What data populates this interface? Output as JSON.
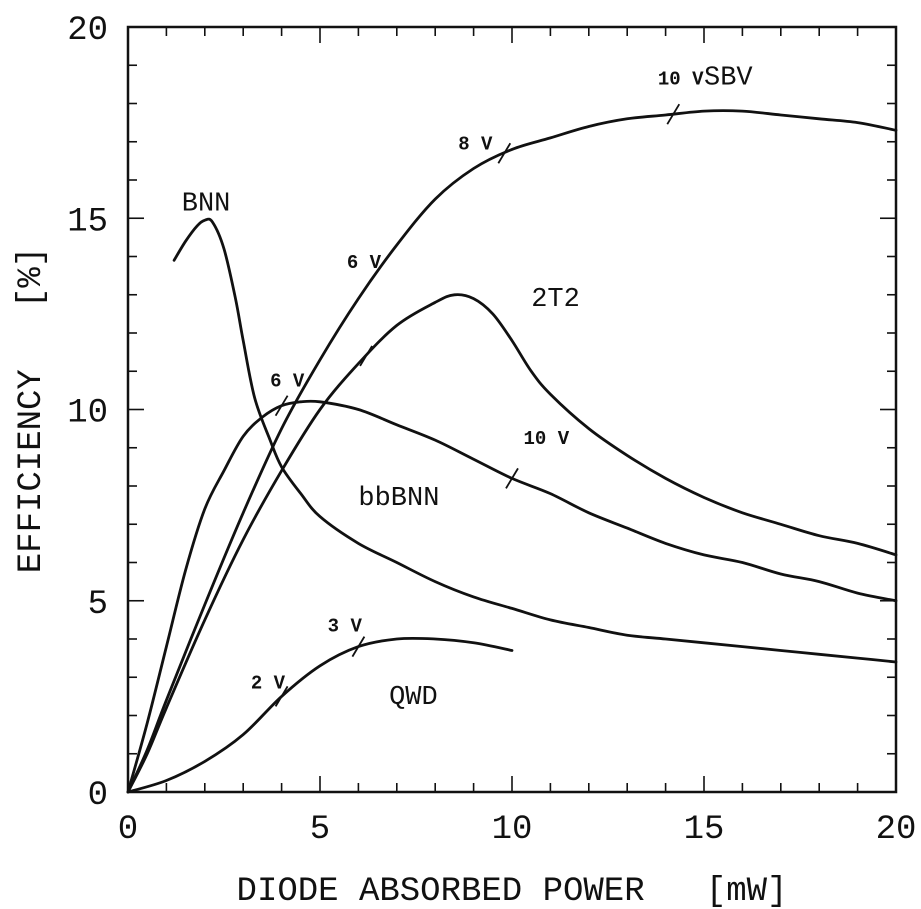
{
  "chart_data": {
    "type": "line",
    "title": "",
    "xlabel": "DIODE ABSORBED POWER   [mW]",
    "ylabel": "EFFICIENCY   [%]",
    "xlim": [
      0,
      20
    ],
    "ylim": [
      0,
      20
    ],
    "x_ticks": [
      0,
      5,
      10,
      15,
      20
    ],
    "y_ticks": [
      0,
      5,
      10,
      15,
      20
    ],
    "x_tick_labels": [
      "0",
      "5",
      "10",
      "15",
      "20"
    ],
    "y_tick_labels": [
      "0",
      "5",
      "10",
      "15",
      "20"
    ],
    "grid": false,
    "legend": "none",
    "series": [
      {
        "name": "SBV",
        "label_at": [
          15.0,
          18.5
        ],
        "points": [
          [
            0,
            0
          ],
          [
            0.5,
            1.1
          ],
          [
            1,
            2.4
          ],
          [
            2,
            4.9
          ],
          [
            3,
            7.3
          ],
          [
            4,
            9.5
          ],
          [
            5,
            11.3
          ],
          [
            6,
            12.9
          ],
          [
            7,
            14.3
          ],
          [
            8,
            15.5
          ],
          [
            9,
            16.3
          ],
          [
            10,
            16.8
          ],
          [
            11,
            17.1
          ],
          [
            12,
            17.4
          ],
          [
            13,
            17.6
          ],
          [
            14,
            17.7
          ],
          [
            15,
            17.8
          ],
          [
            16,
            17.8
          ],
          [
            17,
            17.7
          ],
          [
            18,
            17.6
          ],
          [
            19,
            17.5
          ],
          [
            20,
            17.3
          ]
        ],
        "voltage_marks": [
          {
            "label": "8 V",
            "x": 9.8,
            "label_at": [
              8.6,
              16.8
            ]
          },
          {
            "label": "10 V",
            "x": 14.2,
            "label_at": [
              13.8,
              18.5
            ]
          }
        ]
      },
      {
        "name": "2T2",
        "label_at": [
          10.5,
          12.7
        ],
        "points": [
          [
            0,
            0
          ],
          [
            0.5,
            1.0
          ],
          [
            1,
            2.2
          ],
          [
            2,
            4.5
          ],
          [
            3,
            6.6
          ],
          [
            4,
            8.4
          ],
          [
            5,
            10.0
          ],
          [
            6,
            11.2
          ],
          [
            7,
            12.2
          ],
          [
            8,
            12.8
          ],
          [
            8.5,
            13.0
          ],
          [
            9,
            12.9
          ],
          [
            9.5,
            12.5
          ],
          [
            10,
            11.8
          ],
          [
            10.5,
            11.0
          ],
          [
            11,
            10.4
          ],
          [
            12,
            9.5
          ],
          [
            13,
            8.8
          ],
          [
            14,
            8.2
          ],
          [
            15,
            7.7
          ],
          [
            16,
            7.3
          ],
          [
            17,
            7.0
          ],
          [
            18,
            6.7
          ],
          [
            19,
            6.5
          ],
          [
            20,
            6.2
          ]
        ],
        "voltage_marks": [
          {
            "label": "6 V",
            "x": 6.2,
            "label_at": [
              5.7,
              13.7
            ]
          }
        ]
      },
      {
        "name": "bbBNN",
        "label_at": [
          6.0,
          7.5
        ],
        "points": [
          [
            0,
            0
          ],
          [
            0.5,
            1.8
          ],
          [
            1,
            3.8
          ],
          [
            1.5,
            5.8
          ],
          [
            2,
            7.4
          ],
          [
            2.5,
            8.4
          ],
          [
            3,
            9.3
          ],
          [
            3.5,
            9.8
          ],
          [
            4,
            10.1
          ],
          [
            4.5,
            10.2
          ],
          [
            5,
            10.2
          ],
          [
            6,
            10.0
          ],
          [
            7,
            9.6
          ],
          [
            8,
            9.2
          ],
          [
            9,
            8.7
          ],
          [
            10,
            8.2
          ],
          [
            11,
            7.8
          ],
          [
            12,
            7.3
          ],
          [
            13,
            6.9
          ],
          [
            14,
            6.5
          ],
          [
            15,
            6.2
          ],
          [
            16,
            6.0
          ],
          [
            17,
            5.7
          ],
          [
            18,
            5.5
          ],
          [
            19,
            5.2
          ],
          [
            20,
            5.0
          ]
        ],
        "voltage_marks": [
          {
            "label": "6 V",
            "x": 4.0,
            "label_at": [
              3.7,
              10.6
            ]
          },
          {
            "label": "10 V",
            "x": 10.0,
            "label_at": [
              10.3,
              9.1
            ]
          }
        ]
      },
      {
        "name": "BNN",
        "label_at": [
          1.4,
          15.2
        ],
        "points": [
          [
            1.2,
            13.9
          ],
          [
            1.5,
            14.4
          ],
          [
            1.8,
            14.8
          ],
          [
            2.0,
            14.95
          ],
          [
            2.2,
            14.9
          ],
          [
            2.5,
            14.2
          ],
          [
            2.8,
            12.9
          ],
          [
            3.0,
            11.8
          ],
          [
            3.3,
            10.3
          ],
          [
            3.7,
            9.2
          ],
          [
            4.0,
            8.5
          ],
          [
            4.5,
            7.8
          ],
          [
            5.0,
            7.2
          ],
          [
            6.0,
            6.5
          ],
          [
            7.0,
            6.0
          ],
          [
            8.0,
            5.5
          ],
          [
            9.0,
            5.1
          ],
          [
            10.0,
            4.8
          ],
          [
            11.0,
            4.5
          ],
          [
            12.0,
            4.3
          ],
          [
            13.0,
            4.1
          ],
          [
            14.0,
            4.0
          ],
          [
            15.0,
            3.9
          ],
          [
            16.0,
            3.8
          ],
          [
            17.0,
            3.7
          ],
          [
            18.0,
            3.6
          ],
          [
            19.0,
            3.5
          ],
          [
            20.0,
            3.4
          ]
        ],
        "voltage_marks": []
      },
      {
        "name": "QWD",
        "label_at": [
          6.8,
          2.3
        ],
        "points": [
          [
            0,
            0
          ],
          [
            1,
            0.3
          ],
          [
            2,
            0.8
          ],
          [
            3,
            1.5
          ],
          [
            4,
            2.5
          ],
          [
            5,
            3.3
          ],
          [
            6,
            3.8
          ],
          [
            7,
            4.0
          ],
          [
            8,
            4.0
          ],
          [
            9,
            3.9
          ],
          [
            10,
            3.7
          ]
        ],
        "voltage_marks": [
          {
            "label": "2 V",
            "x": 4.0,
            "label_at": [
              3.2,
              2.7
            ]
          },
          {
            "label": "3 V",
            "x": 6.0,
            "label_at": [
              5.2,
              4.2
            ]
          }
        ]
      }
    ]
  }
}
